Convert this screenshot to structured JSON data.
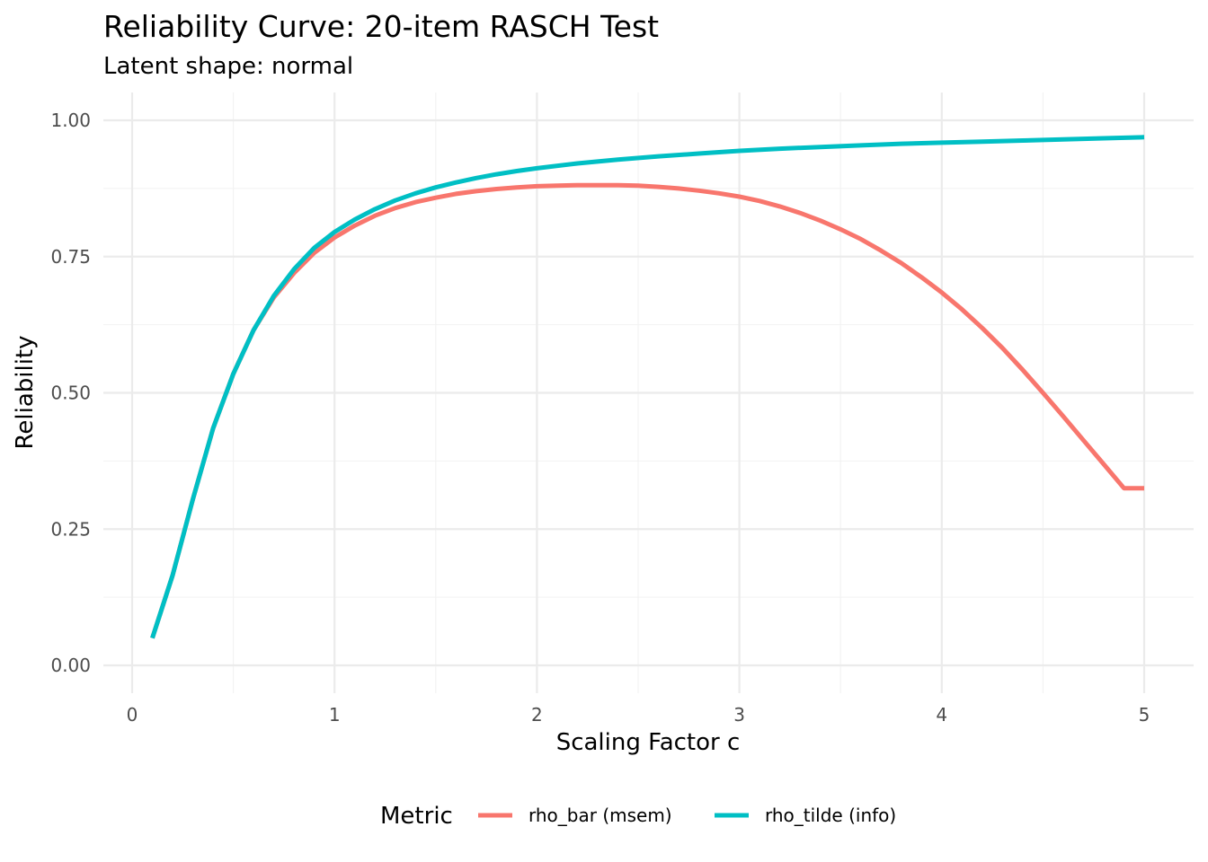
{
  "chart_data": {
    "type": "line",
    "title": "Reliability Curve: 20-item RASCH Test",
    "subtitle": "Latent shape: normal",
    "xlabel": "Scaling Factor c",
    "ylabel": "Reliability",
    "xlim": [
      -0.1,
      5.25
    ],
    "ylim": [
      -0.05,
      1.05
    ],
    "x_ticks": [
      0,
      1,
      2,
      3,
      4,
      5
    ],
    "x_tick_labels": [
      "0",
      "1",
      "2",
      "3",
      "4",
      "5"
    ],
    "y_ticks": [
      0,
      0.25,
      0.5,
      0.75,
      1.0
    ],
    "y_tick_labels": [
      "0.00",
      "0.25",
      "0.50",
      "0.75",
      "1.00"
    ],
    "grid": true,
    "legend": {
      "title": "Metric",
      "position": "bottom"
    },
    "series": [
      {
        "name": "rho_bar (msem)",
        "color": "#f8766d",
        "x": [
          0.1,
          0.2,
          0.3,
          0.4,
          0.5,
          0.6,
          0.7,
          0.8,
          0.9,
          1.0,
          1.1,
          1.2,
          1.3,
          1.4,
          1.5,
          1.6,
          1.7,
          1.8,
          1.9,
          2.0,
          2.1,
          2.2,
          2.3,
          2.4,
          2.5,
          2.6,
          2.7,
          2.8,
          2.9,
          3.0,
          3.1,
          3.2,
          3.3,
          3.4,
          3.5,
          3.6,
          3.7,
          3.8,
          3.9,
          4.0,
          4.1,
          4.2,
          4.3,
          4.4,
          4.5,
          4.6,
          4.7,
          4.8,
          4.9,
          5.0
        ],
        "y": [
          0.05,
          0.165,
          0.305,
          0.435,
          0.535,
          0.615,
          0.675,
          0.72,
          0.757,
          0.785,
          0.807,
          0.825,
          0.839,
          0.85,
          0.858,
          0.865,
          0.87,
          0.874,
          0.877,
          0.879,
          0.88,
          0.881,
          0.881,
          0.881,
          0.88,
          0.878,
          0.875,
          0.871,
          0.866,
          0.86,
          0.852,
          0.842,
          0.83,
          0.816,
          0.8,
          0.782,
          0.761,
          0.738,
          0.712,
          0.684,
          0.653,
          0.619,
          0.582,
          0.542,
          0.5,
          0.457,
          0.413,
          0.369,
          0.325,
          0.325
        ]
      },
      {
        "name": "rho_tilde (info)",
        "color": "#00bfc4",
        "x": [
          0.1,
          0.2,
          0.3,
          0.4,
          0.5,
          0.6,
          0.7,
          0.8,
          0.9,
          1.0,
          1.1,
          1.2,
          1.3,
          1.4,
          1.5,
          1.6,
          1.7,
          1.8,
          1.9,
          2.0,
          2.2,
          2.4,
          2.6,
          2.8,
          3.0,
          3.2,
          3.4,
          3.6,
          3.8,
          4.0,
          4.2,
          4.4,
          4.6,
          4.8,
          5.0
        ],
        "y": [
          0.05,
          0.165,
          0.305,
          0.435,
          0.535,
          0.615,
          0.678,
          0.727,
          0.766,
          0.795,
          0.818,
          0.837,
          0.853,
          0.866,
          0.877,
          0.886,
          0.894,
          0.901,
          0.907,
          0.912,
          0.921,
          0.928,
          0.934,
          0.939,
          0.944,
          0.948,
          0.951,
          0.954,
          0.957,
          0.959,
          0.961,
          0.963,
          0.965,
          0.967,
          0.969
        ]
      }
    ]
  }
}
